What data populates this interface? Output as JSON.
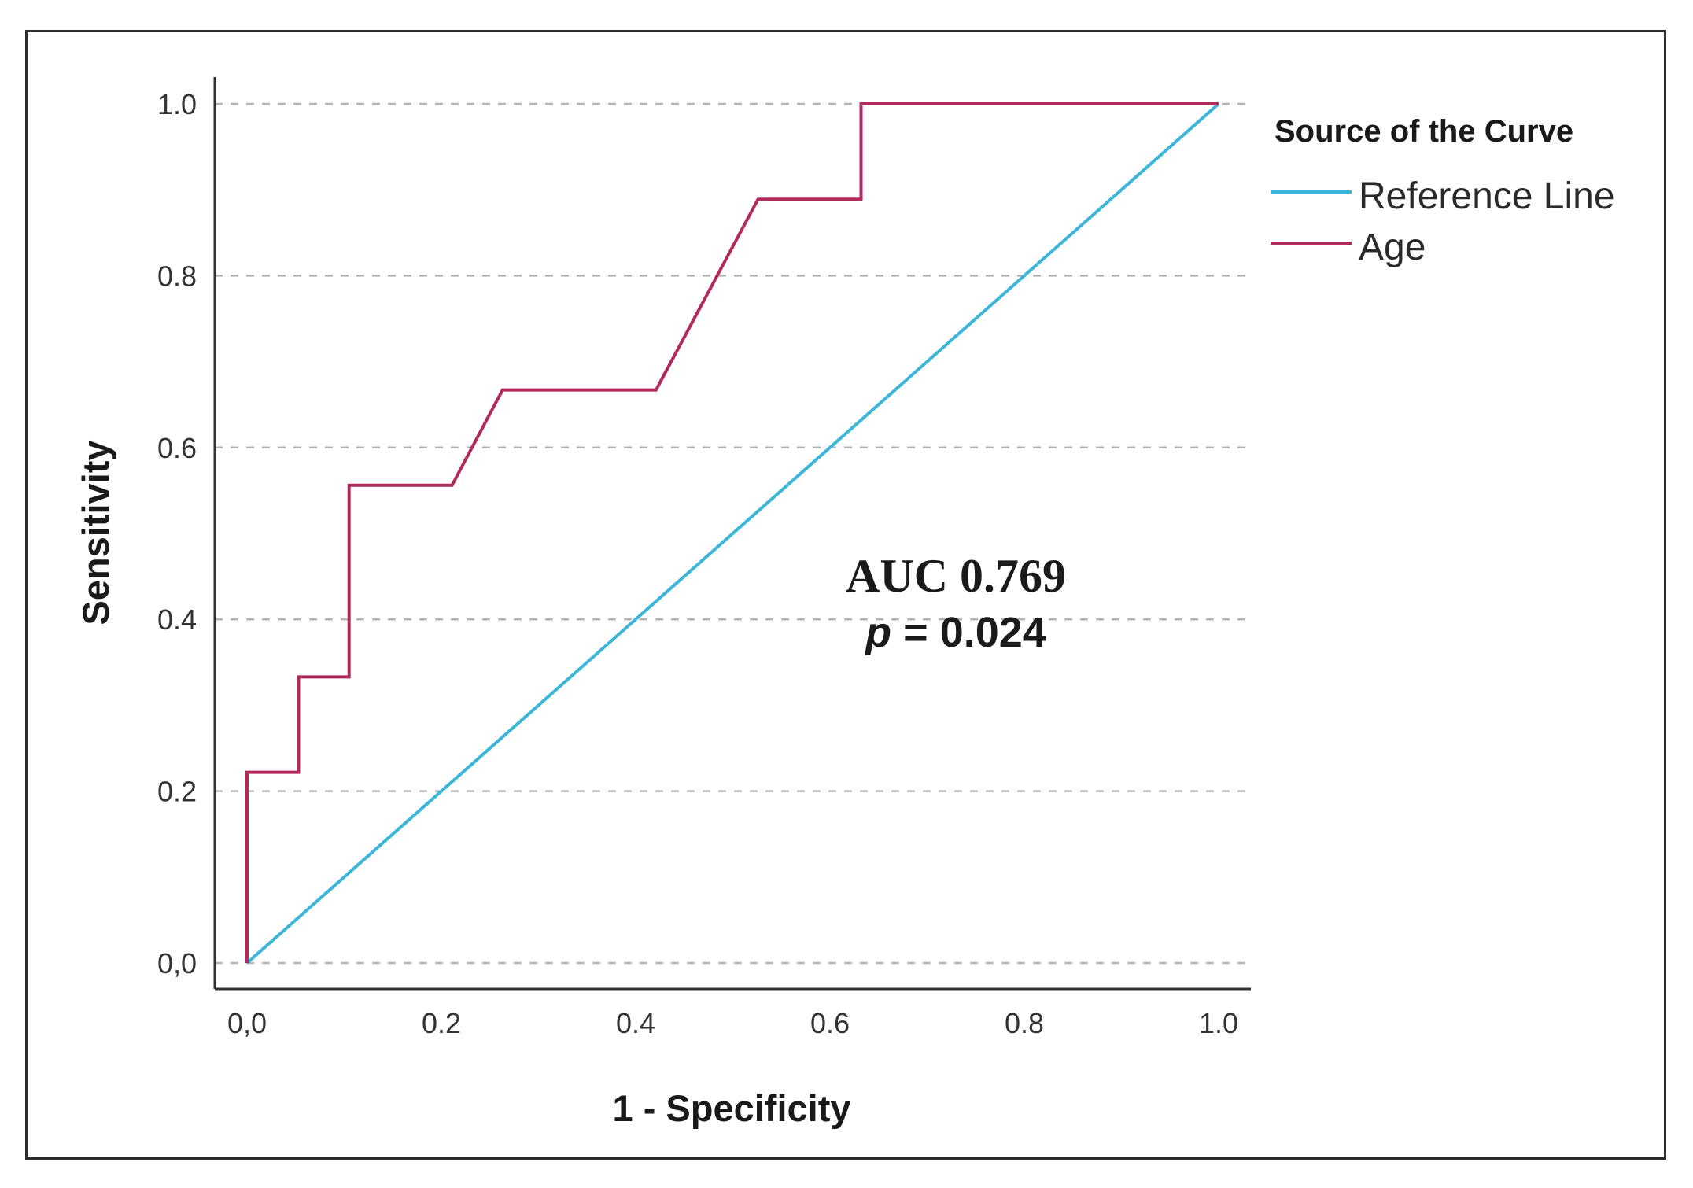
{
  "chart_data": {
    "type": "line",
    "title": "",
    "xlabel": "1 - Specificity",
    "ylabel": "Sensitivity",
    "xlim": [
      0,
      1
    ],
    "ylim": [
      0,
      1
    ],
    "x_ticks": [
      0.0,
      0.2,
      0.4,
      0.6,
      0.8,
      1.0
    ],
    "x_tick_labels": [
      "0,0",
      "0.2",
      "0.4",
      "0.6",
      "0.8",
      "1.0"
    ],
    "y_ticks": [
      0.0,
      0.2,
      0.4,
      0.6,
      0.8,
      1.0
    ],
    "y_tick_labels": [
      "0,0",
      "0.2",
      "0.4",
      "0.6",
      "0.8",
      "1.0"
    ],
    "grid": "horizontal dashed",
    "legend": {
      "title": "Source of the Curve",
      "placement": "top-right outside plot",
      "entries": [
        "Reference Line",
        "Age"
      ]
    },
    "series": [
      {
        "name": "Reference Line",
        "color": "#3bb6d8",
        "x": [
          0.0,
          1.0
        ],
        "y": [
          0.0,
          1.0
        ]
      },
      {
        "name": "Age",
        "color": "#b02a5c",
        "x": [
          0.0,
          0.0,
          0.053,
          0.053,
          0.105,
          0.105,
          0.211,
          0.263,
          0.421,
          0.526,
          0.632,
          0.632,
          1.0
        ],
        "y": [
          0.0,
          0.222,
          0.222,
          0.333,
          0.333,
          0.556,
          0.556,
          0.667,
          0.667,
          0.889,
          0.889,
          1.0,
          1.0
        ]
      }
    ],
    "annotations": {
      "auc": "AUC 0.769",
      "p_symbol": "p",
      "p_rest": " = 0.024"
    }
  }
}
